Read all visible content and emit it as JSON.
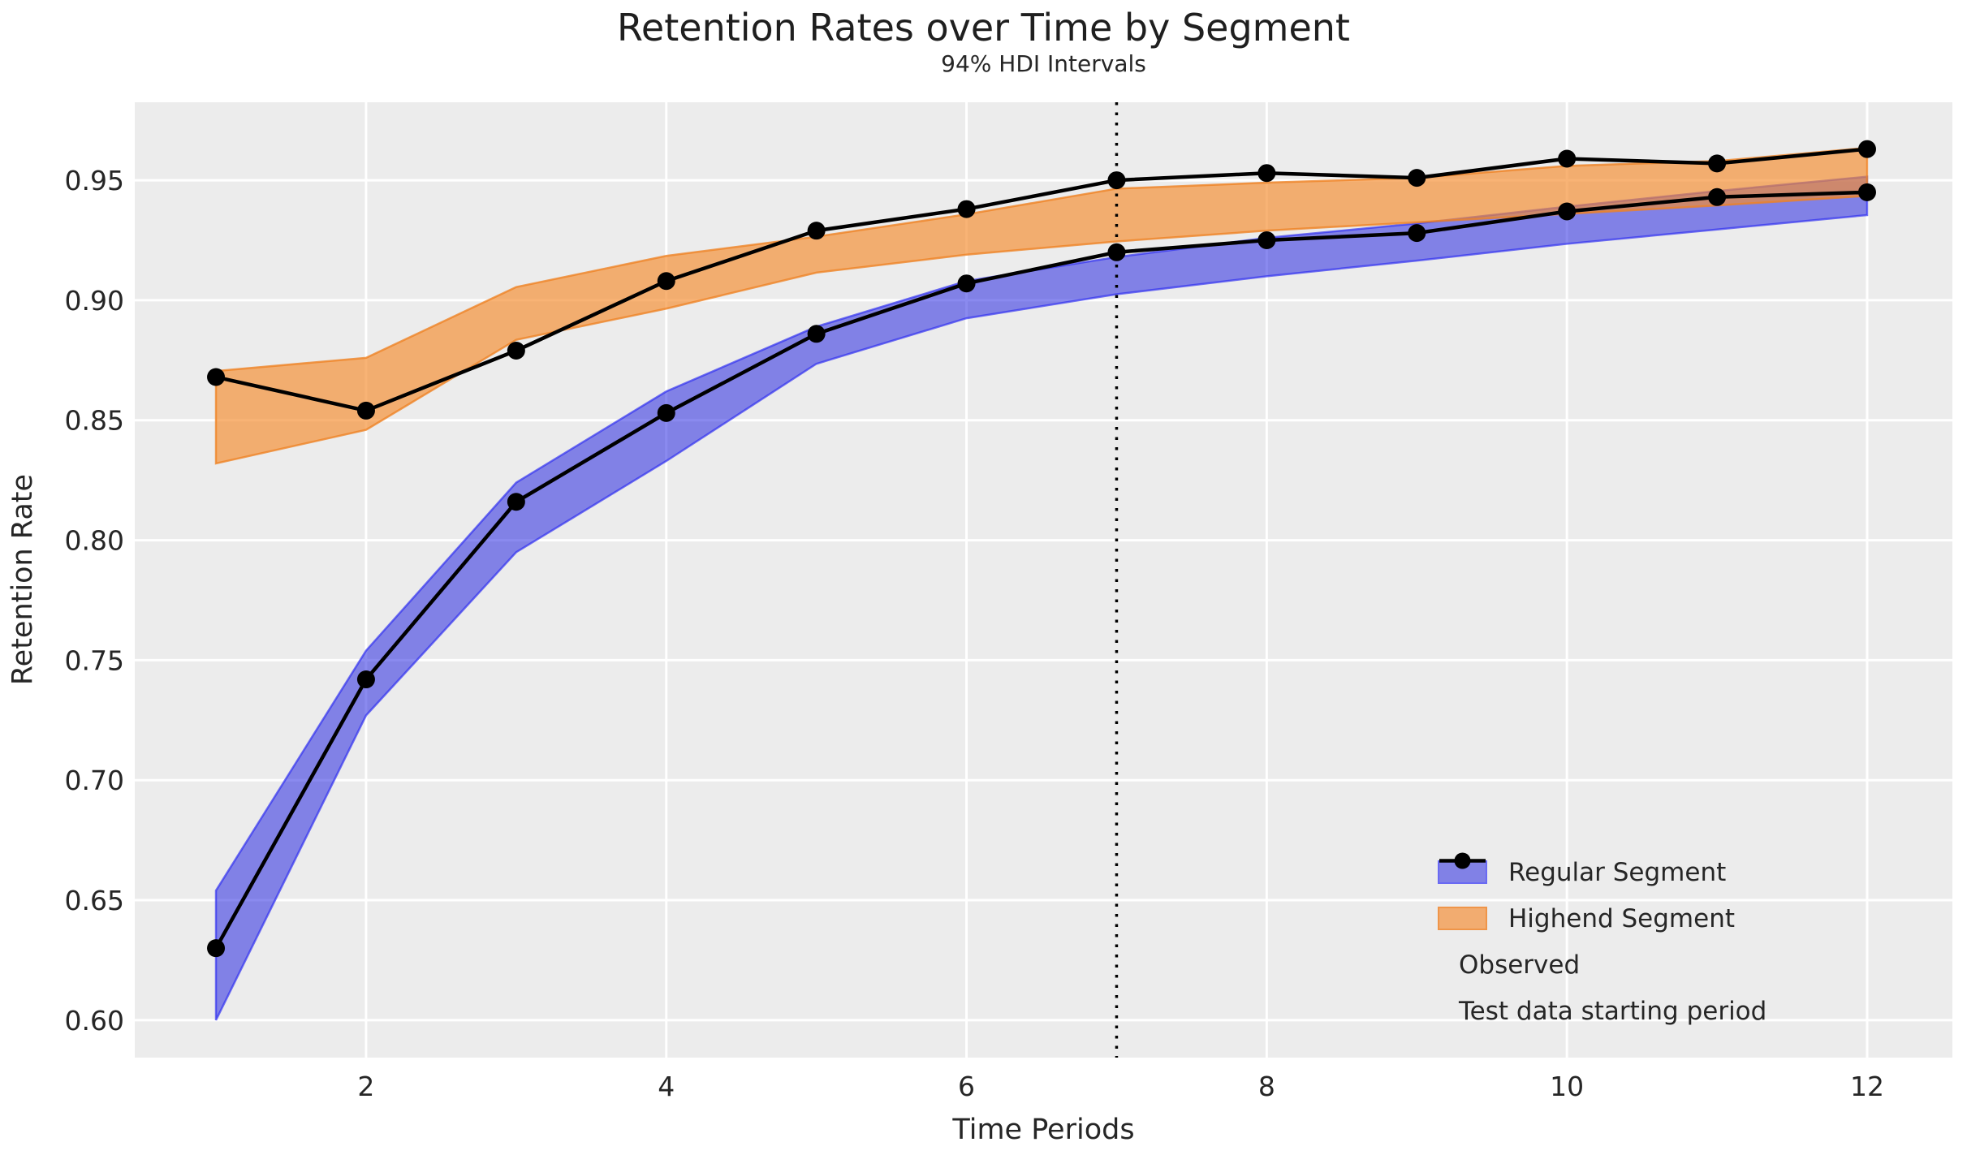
{
  "chart_data": {
    "type": "line",
    "title": "Retention Rates over Time by Segment",
    "subtitle": "94% HDI Intervals",
    "xlabel": "Time Periods",
    "ylabel": "Retention Rate",
    "grid": true,
    "legend_position": "lower right",
    "x": [
      1,
      2,
      3,
      4,
      5,
      6,
      7,
      8,
      9,
      10,
      11,
      12
    ],
    "xticks": [
      "2",
      "4",
      "6",
      "8",
      "10",
      "12"
    ],
    "xtick_values": [
      2,
      4,
      6,
      8,
      10,
      12
    ],
    "yticks": [
      "0.60",
      "0.65",
      "0.70",
      "0.75",
      "0.80",
      "0.85",
      "0.90",
      "0.95"
    ],
    "ytick_values": [
      0.6,
      0.65,
      0.7,
      0.75,
      0.8,
      0.85,
      0.9,
      0.95
    ],
    "xlim": [
      0.459,
      12.568
    ],
    "ylim": [
      0.5844,
      0.9825
    ],
    "test_data_start_x": 7,
    "series": [
      {
        "name": "Observed (Regular)",
        "type": "line_markers",
        "color": "#000000",
        "values": [
          0.63,
          0.742,
          0.816,
          0.853,
          0.886,
          0.907,
          0.92,
          0.925,
          0.928,
          0.937,
          0.943,
          0.945
        ]
      },
      {
        "name": "Observed (Highend)",
        "type": "line_markers",
        "color": "#000000",
        "values": [
          0.868,
          0.854,
          0.879,
          0.908,
          0.929,
          0.938,
          0.95,
          0.953,
          0.951,
          0.959,
          0.957,
          0.963
        ]
      }
    ],
    "bands": [
      {
        "name": "Regular Segment",
        "fill": "rgba(30,30,225,0.52)",
        "edge": "rgba(45,45,240,0.68)",
        "upper": [
          0.654,
          0.754,
          0.824,
          0.862,
          0.889,
          0.908,
          0.918,
          0.926,
          0.932,
          0.939,
          0.9455,
          0.9515
        ],
        "lower": [
          0.6,
          0.727,
          0.795,
          0.833,
          0.8735,
          0.8925,
          0.9025,
          0.91,
          0.9165,
          0.9235,
          0.9295,
          0.9355
        ]
      },
      {
        "name": "Highend Segment",
        "fill": "rgba(245,140,45,0.66)",
        "edge": "rgba(238,130,35,0.78)",
        "upper": [
          0.8705,
          0.876,
          0.9055,
          0.9185,
          0.9265,
          0.9358,
          0.9465,
          0.949,
          0.951,
          0.956,
          0.958,
          0.9635
        ],
        "lower": [
          0.832,
          0.846,
          0.8835,
          0.8965,
          0.9115,
          0.919,
          0.9245,
          0.929,
          0.9325,
          0.936,
          0.9395,
          0.9435
        ]
      }
    ],
    "legend": [
      {
        "label": "Regular Segment",
        "swatch": "patch",
        "fill": "#8181e6",
        "border": "#6a6af3"
      },
      {
        "label": "Highend Segment",
        "swatch": "patch",
        "fill": "#f2ac70",
        "border": "#ef9549"
      },
      {
        "label": "Observed",
        "swatch": "line_marker",
        "color": "#000000"
      },
      {
        "label": "Test data starting period",
        "swatch": "dotted_line",
        "color": "#000000"
      }
    ],
    "colors": {
      "axes_background": "#ececec",
      "grid": "#ffffff",
      "text": "#262626",
      "figure_background": "#ffffff"
    }
  }
}
